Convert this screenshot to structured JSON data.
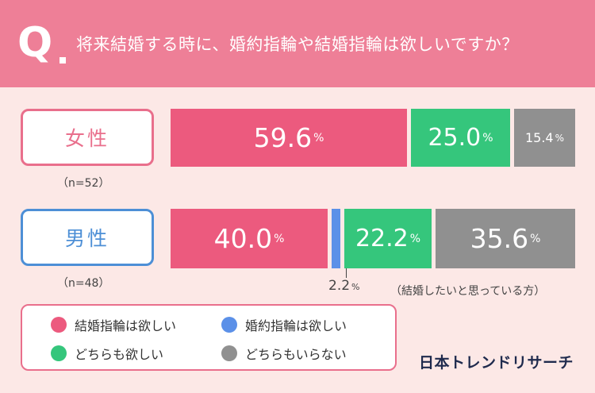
{
  "header": {
    "q_letter": "Q",
    "question": "将来結婚する時に、婚約指輪や結婚指輪は欲しいですか？"
  },
  "groups": {
    "female": {
      "label": "女性",
      "n": "（n=52）"
    },
    "male": {
      "label": "男性",
      "n": "（n=48）"
    }
  },
  "percent_sign": "%",
  "callout": {
    "value": "2.2",
    "pct": "%"
  },
  "note": "（結婚したいと思っている方）",
  "legend": [
    {
      "label": "結婚指輪は欲しい",
      "color": "#ec5a7e"
    },
    {
      "label": "婚約指輪は欲しい",
      "color": "#5b90e8"
    },
    {
      "label": "どちらも欲しい",
      "color": "#35c67c"
    },
    {
      "label": "どちらもいらない",
      "color": "#909090"
    }
  ],
  "logo": "日本トレンドリサーチ",
  "chart_data": {
    "type": "bar",
    "orientation": "horizontal",
    "stacked": true,
    "categories": [
      "女性",
      "男性"
    ],
    "series": [
      {
        "name": "結婚指輪は欲しい",
        "values": [
          59.6,
          40.0
        ],
        "color": "#ec5a7e"
      },
      {
        "name": "婚約指輪は欲しい",
        "values": [
          0,
          2.2
        ],
        "color": "#5b90e8"
      },
      {
        "name": "どちらも欲しい",
        "values": [
          25.0,
          22.2
        ],
        "color": "#35c67c"
      },
      {
        "name": "どちらもいらない",
        "values": [
          15.4,
          35.6
        ],
        "color": "#909090"
      }
    ],
    "unit": "%"
  }
}
